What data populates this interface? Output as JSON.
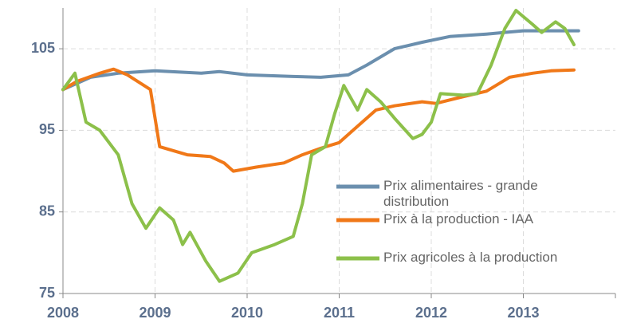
{
  "chart_data": {
    "type": "line",
    "xlim": [
      2008,
      2014
    ],
    "xticks": [
      2008,
      2009,
      2010,
      2011,
      2012,
      2013
    ],
    "ylim": [
      75,
      110
    ],
    "yticks": [
      75,
      85,
      95,
      105
    ],
    "grid": true,
    "legend": "right",
    "series": [
      {
        "name": "Prix alimentaires - grande distribution",
        "color": "#6b8fae",
        "x": [
          2008,
          2008.3,
          2008.6,
          2009,
          2009.5,
          2009.7,
          2010,
          2010.5,
          2010.8,
          2011.1,
          2011.3,
          2011.6,
          2011.9,
          2012.2,
          2012.6,
          2013,
          2013.6
        ],
        "values": [
          100,
          101.5,
          102,
          102.3,
          102,
          102.2,
          101.8,
          101.6,
          101.5,
          101.8,
          103,
          105,
          105.8,
          106.5,
          106.8,
          107.2,
          107.2
        ]
      },
      {
        "name": "Prix à la production - IAA",
        "color": "#f07818",
        "x": [
          2008,
          2008.15,
          2008.4,
          2008.55,
          2008.7,
          2008.95,
          2009.05,
          2009.35,
          2009.6,
          2009.75,
          2009.85,
          2010.1,
          2010.4,
          2010.6,
          2010.8,
          2011.0,
          2011.2,
          2011.4,
          2011.6,
          2011.9,
          2012.05,
          2012.3,
          2012.6,
          2012.85,
          2013.1,
          2013.3,
          2013.55
        ],
        "values": [
          100,
          101,
          102,
          102.5,
          101.8,
          100,
          93,
          92,
          91.8,
          91,
          90,
          90.5,
          91,
          92,
          92.8,
          93.5,
          95.5,
          97.5,
          98,
          98.5,
          98.3,
          99,
          99.8,
          101.5,
          102,
          102.3,
          102.4
        ]
      },
      {
        "name": "Prix agricoles à la production",
        "color": "#8cc04a",
        "x": [
          2008,
          2008.13,
          2008.25,
          2008.4,
          2008.6,
          2008.75,
          2008.9,
          2009.05,
          2009.2,
          2009.3,
          2009.38,
          2009.55,
          2009.7,
          2009.9,
          2010.05,
          2010.3,
          2010.5,
          2010.6,
          2010.7,
          2010.85,
          2010.95,
          2011.05,
          2011.2,
          2011.3,
          2011.45,
          2011.6,
          2011.8,
          2011.9,
          2012.0,
          2012.1,
          2012.35,
          2012.5,
          2012.65,
          2012.8,
          2012.92,
          2013.1,
          2013.2,
          2013.35,
          2013.45,
          2013.55
        ],
        "values": [
          100,
          102,
          96,
          95,
          92,
          86,
          83,
          85.5,
          84,
          81,
          82.5,
          79,
          76.5,
          77.5,
          80,
          81,
          82,
          86,
          92,
          93,
          97,
          100.5,
          97.5,
          100,
          98.5,
          96.5,
          94,
          94.5,
          96,
          99.5,
          99.3,
          99.5,
          103,
          107.5,
          109.7,
          108,
          107,
          108.3,
          107.5,
          105.5
        ]
      }
    ]
  }
}
